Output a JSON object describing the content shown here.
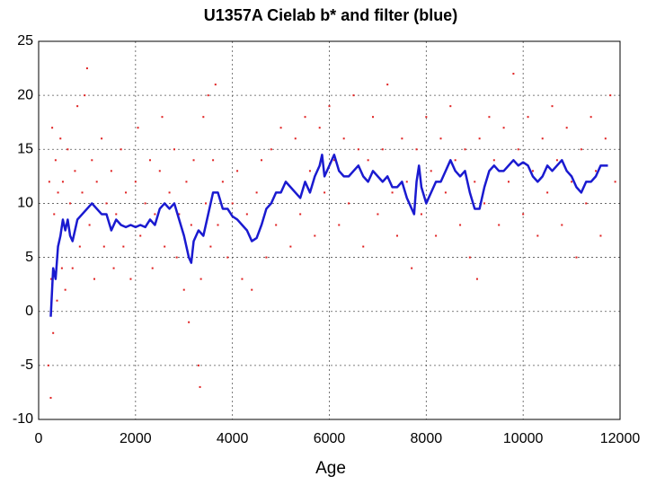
{
  "chart_data": {
    "type": "scatter",
    "title": "U1357A Cielab b* and filter (blue)",
    "x_label": "Age",
    "xlim": [
      0,
      12000
    ],
    "xticks": [
      0,
      2000,
      4000,
      6000,
      8000,
      10000,
      12000
    ],
    "ylim": [
      -10,
      25
    ],
    "yticks": [
      -10,
      -5,
      0,
      5,
      10,
      15,
      20,
      25
    ],
    "grid": true,
    "series": [
      {
        "type": "scatter",
        "color": "#e02020",
        "x": [
          200,
          220,
          250,
          260,
          280,
          300,
          320,
          350,
          380,
          400,
          450,
          480,
          500,
          550,
          600,
          650,
          700,
          750,
          800,
          850,
          900,
          950,
          1000,
          1050,
          1100,
          1150,
          1200,
          1300,
          1350,
          1400,
          1500,
          1550,
          1600,
          1700,
          1750,
          1800,
          1900,
          2000,
          2050,
          2100,
          2200,
          2300,
          2350,
          2400,
          2500,
          2550,
          2600,
          2700,
          2800,
          2850,
          2900,
          3000,
          3050,
          3100,
          3150,
          3200,
          3300,
          3330,
          3350,
          3400,
          3450,
          3500,
          3550,
          3600,
          3650,
          3700,
          3800,
          3900,
          4000,
          4100,
          4200,
          4300,
          4400,
          4500,
          4600,
          4700,
          4800,
          4900,
          5000,
          5100,
          5200,
          5300,
          5400,
          5500,
          5600,
          5700,
          5800,
          5900,
          6000,
          6100,
          6200,
          6300,
          6400,
          6500,
          6600,
          6700,
          6800,
          6900,
          7000,
          7100,
          7200,
          7300,
          7400,
          7500,
          7600,
          7700,
          7800,
          7900,
          8000,
          8100,
          8200,
          8300,
          8400,
          8500,
          8600,
          8700,
          8800,
          8900,
          9000,
          9050,
          9100,
          9200,
          9300,
          9400,
          9500,
          9600,
          9700,
          9800,
          9900,
          10000,
          10100,
          10200,
          10300,
          10400,
          10500,
          10600,
          10700,
          10800,
          10900,
          11000,
          11100,
          11200,
          11300,
          11400,
          11500,
          11600,
          11700,
          11800,
          11900
        ],
        "values": [
          -5,
          12,
          -8,
          3,
          17,
          -2,
          9,
          14,
          1,
          11,
          16,
          4,
          12,
          2,
          15,
          10,
          4,
          13,
          19,
          6,
          11,
          20,
          22.5,
          8,
          14,
          3,
          12,
          16,
          6,
          10,
          13,
          4,
          9,
          15,
          6,
          11,
          3,
          12,
          17,
          7,
          10,
          14,
          4,
          9,
          13,
          18,
          6,
          11,
          15,
          5,
          9,
          2,
          12,
          -1,
          8,
          14,
          -5,
          -7,
          3,
          18,
          10,
          20,
          6,
          14,
          21,
          8,
          12,
          5,
          10,
          13,
          3,
          9,
          2,
          11,
          14,
          5,
          15,
          8,
          17,
          12,
          6,
          16,
          9,
          18,
          13,
          7,
          17,
          11,
          19,
          14,
          8,
          16,
          10,
          20,
          15,
          6,
          14,
          18,
          9,
          15,
          21,
          11,
          7,
          16,
          12,
          4,
          15,
          9,
          18,
          13,
          7,
          16,
          11,
          19,
          14,
          8,
          15,
          5,
          12,
          3,
          16,
          10,
          18,
          14,
          8,
          17,
          12,
          22,
          15,
          9,
          18,
          13,
          7,
          16,
          11,
          19,
          14,
          8,
          17,
          12,
          5,
          15,
          10,
          18,
          13,
          7,
          16,
          20,
          12
        ]
      },
      {
        "type": "line",
        "color": "#1a1ad0",
        "x": [
          250,
          300,
          350,
          400,
          450,
          500,
          550,
          600,
          650,
          700,
          800,
          900,
          1000,
          1100,
          1200,
          1300,
          1400,
          1500,
          1600,
          1700,
          1800,
          1900,
          2000,
          2100,
          2200,
          2300,
          2400,
          2500,
          2600,
          2700,
          2800,
          2900,
          3000,
          3100,
          3150,
          3200,
          3300,
          3400,
          3500,
          3600,
          3700,
          3800,
          3900,
          4000,
          4100,
          4200,
          4300,
          4400,
          4500,
          4600,
          4700,
          4800,
          4900,
          5000,
          5100,
          5200,
          5300,
          5400,
          5500,
          5600,
          5700,
          5800,
          5850,
          5900,
          6000,
          6100,
          6200,
          6300,
          6400,
          6500,
          6600,
          6700,
          6800,
          6900,
          7000,
          7100,
          7200,
          7300,
          7400,
          7500,
          7600,
          7700,
          7750,
          7800,
          7850,
          7900,
          8000,
          8100,
          8200,
          8300,
          8400,
          8500,
          8600,
          8700,
          8800,
          8900,
          9000,
          9100,
          9200,
          9300,
          9400,
          9500,
          9600,
          9700,
          9800,
          9900,
          10000,
          10100,
          10200,
          10300,
          10400,
          10500,
          10600,
          10700,
          10800,
          10900,
          11000,
          11100,
          11200,
          11300,
          11400,
          11500,
          11600,
          11700,
          11750
        ],
        "values": [
          -0.5,
          4,
          3,
          6,
          7,
          8.5,
          7.5,
          8.5,
          7,
          6.5,
          8.5,
          9,
          9.5,
          10,
          9.5,
          9,
          9,
          7.5,
          8.5,
          8,
          7.8,
          8,
          7.8,
          8,
          7.8,
          8.5,
          8,
          9.5,
          10,
          9.5,
          10,
          8.5,
          7,
          5,
          4.5,
          6.5,
          7.5,
          7,
          9,
          11,
          11,
          9.5,
          9.5,
          8.8,
          8.5,
          8,
          7.5,
          6.5,
          6.8,
          8,
          9.5,
          10,
          11,
          11,
          12,
          11.5,
          11,
          10.5,
          12,
          11,
          12.5,
          13.5,
          14.5,
          12.5,
          13.5,
          14.5,
          13,
          12.5,
          12.5,
          13,
          13.5,
          12.5,
          12,
          13,
          12.5,
          12,
          12.5,
          11.5,
          11.5,
          12,
          10.5,
          9.5,
          9,
          12,
          13.5,
          11.5,
          10,
          11,
          12,
          12,
          13,
          14,
          13,
          12.5,
          13,
          11,
          9.5,
          9.5,
          11.5,
          13,
          13.5,
          13,
          13,
          13.5,
          14,
          13.5,
          13.8,
          13.5,
          12.5,
          12,
          12.5,
          13.5,
          13,
          13.5,
          14,
          13,
          12.5,
          11.5,
          11,
          12,
          12,
          12.5,
          13.5,
          13.5,
          13.5
        ]
      }
    ]
  }
}
